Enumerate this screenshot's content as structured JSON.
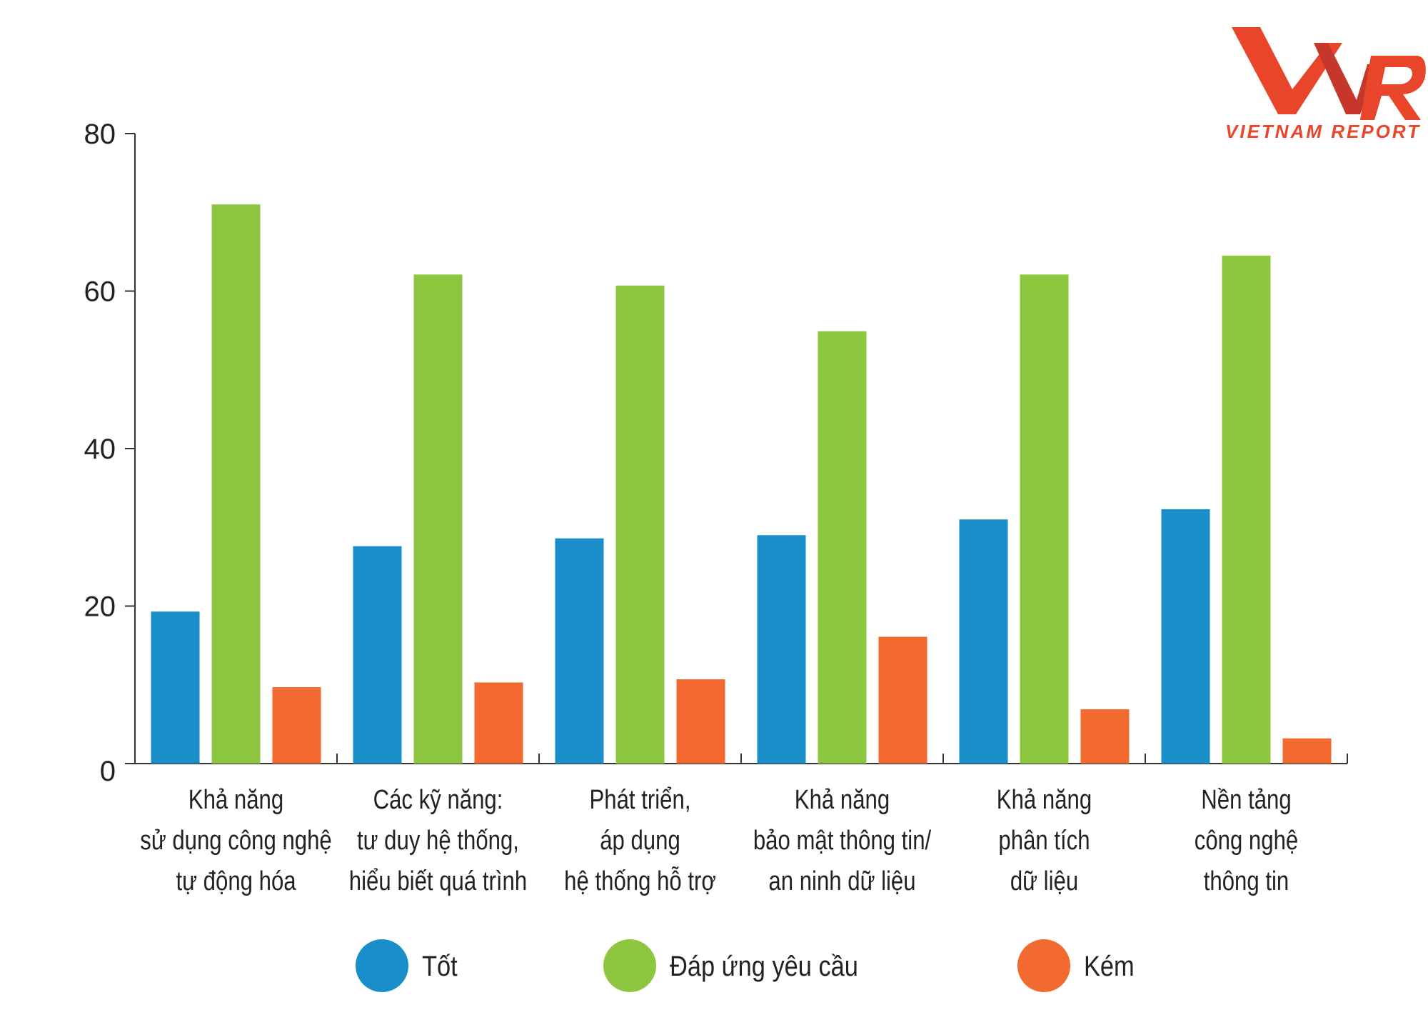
{
  "logo": {
    "mark": "VNR",
    "tagline": "VIETNAM REPORT"
  },
  "chart_data": {
    "type": "bar",
    "title": "",
    "xlabel": "",
    "ylabel": "",
    "ylim": [
      0,
      80
    ],
    "yticks": [
      0,
      20,
      40,
      60,
      80
    ],
    "categories": [
      [
        "Khả năng",
        "sử dụng công nghệ",
        "tự động hóa"
      ],
      [
        "Các kỹ năng:",
        "tư duy hệ thống,",
        "hiểu biết quá trình"
      ],
      [
        "Phát triển,",
        "áp dụng",
        "hệ thống hỗ trợ"
      ],
      [
        "Khả năng",
        "bảo mật thông tin/",
        "an ninh dữ liệu"
      ],
      [
        "Khả năng",
        "phân tích",
        "dữ liệu"
      ],
      [
        "Nền tảng",
        "công nghệ",
        "thông tin"
      ]
    ],
    "series": [
      {
        "name": "Tốt",
        "color": "#1a8ec8",
        "values": [
          19.3,
          27.6,
          28.6,
          29.0,
          31.0,
          32.3
        ]
      },
      {
        "name": "Đáp ứng yêu cầu",
        "color": "#8dc63f",
        "values": [
          71.0,
          62.1,
          60.7,
          54.9,
          62.1,
          64.5
        ]
      },
      {
        "name": "Kém",
        "color": "#f26a30",
        "values": [
          9.7,
          10.3,
          10.7,
          16.1,
          6.9,
          3.2
        ]
      }
    ],
    "legend_position": "bottom",
    "grid": false
  }
}
